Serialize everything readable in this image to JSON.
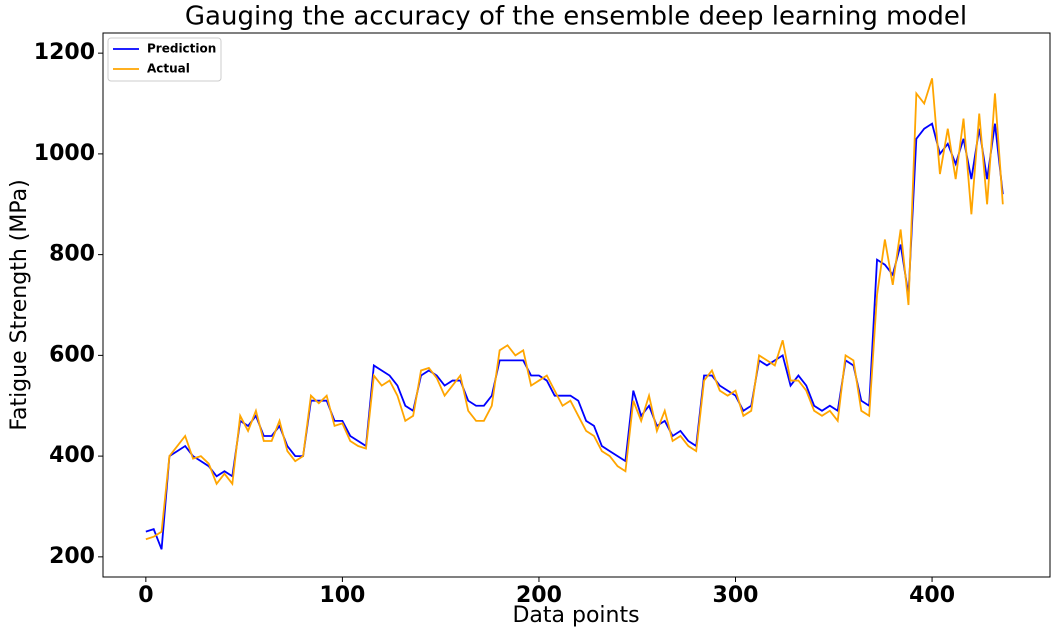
{
  "chart_data": {
    "type": "line",
    "title": "Gauging the accuracy of the ensemble deep learning model",
    "x_label": "Data points",
    "y_label": "Fatigue Strength (MPa)",
    "x": [
      0,
      4,
      8,
      12,
      16,
      20,
      24,
      28,
      32,
      36,
      40,
      44,
      48,
      52,
      56,
      60,
      64,
      68,
      72,
      76,
      80,
      84,
      88,
      92,
      96,
      100,
      104,
      108,
      112,
      116,
      120,
      124,
      128,
      132,
      136,
      140,
      144,
      148,
      152,
      156,
      160,
      164,
      168,
      172,
      176,
      180,
      184,
      188,
      192,
      196,
      200,
      204,
      208,
      212,
      216,
      220,
      224,
      228,
      232,
      236,
      240,
      244,
      248,
      252,
      256,
      260,
      264,
      268,
      272,
      276,
      280,
      284,
      288,
      292,
      296,
      300,
      304,
      308,
      312,
      316,
      320,
      324,
      328,
      332,
      336,
      340,
      344,
      348,
      352,
      356,
      360,
      364,
      368,
      372,
      376,
      380,
      384,
      388,
      392,
      396,
      400,
      404,
      408,
      412,
      416,
      420,
      424,
      428,
      432,
      436
    ],
    "series": [
      {
        "name": "Prediction",
        "color": "#0000ff",
        "values": [
          250,
          255,
          215,
          400,
          410,
          420,
          400,
          390,
          380,
          360,
          370,
          360,
          470,
          460,
          480,
          440,
          440,
          460,
          420,
          400,
          400,
          510,
          510,
          510,
          470,
          470,
          440,
          430,
          420,
          580,
          570,
          560,
          540,
          500,
          490,
          560,
          570,
          560,
          540,
          550,
          550,
          510,
          500,
          500,
          520,
          590,
          590,
          590,
          590,
          560,
          560,
          550,
          520,
          520,
          520,
          510,
          470,
          460,
          420,
          410,
          400,
          390,
          530,
          480,
          500,
          460,
          470,
          440,
          450,
          430,
          420,
          560,
          560,
          540,
          530,
          520,
          490,
          500,
          590,
          580,
          590,
          600,
          540,
          560,
          540,
          500,
          490,
          500,
          490,
          590,
          580,
          510,
          500,
          790,
          780,
          760,
          820,
          720,
          1030,
          1050,
          1060,
          1000,
          1020,
          980,
          1030,
          950,
          1050,
          950,
          1060,
          920
        ]
      },
      {
        "name": "Actual",
        "color": "#ffa500",
        "values": [
          235,
          240,
          250,
          400,
          420,
          440,
          395,
          400,
          385,
          345,
          365,
          345,
          480,
          450,
          490,
          430,
          430,
          470,
          410,
          390,
          400,
          520,
          505,
          520,
          460,
          465,
          430,
          420,
          415,
          560,
          540,
          550,
          520,
          470,
          480,
          570,
          575,
          555,
          520,
          540,
          560,
          490,
          470,
          470,
          500,
          610,
          620,
          600,
          610,
          540,
          550,
          560,
          530,
          500,
          510,
          480,
          450,
          440,
          410,
          400,
          380,
          370,
          510,
          470,
          520,
          450,
          490,
          430,
          440,
          420,
          410,
          550,
          570,
          530,
          520,
          530,
          480,
          490,
          600,
          590,
          580,
          630,
          550,
          550,
          530,
          490,
          480,
          490,
          470,
          600,
          590,
          490,
          480,
          720,
          830,
          740,
          850,
          700,
          1120,
          1100,
          1150,
          960,
          1050,
          950,
          1070,
          880,
          1080,
          900,
          1120,
          900
        ]
      }
    ],
    "xlim": [
      -21.8,
      460
    ],
    "ylim": [
      160,
      1240
    ],
    "xticks": [
      0,
      100,
      200,
      300,
      400
    ],
    "yticks": [
      200,
      400,
      600,
      800,
      1000,
      1200
    ],
    "legend": "upper left"
  }
}
